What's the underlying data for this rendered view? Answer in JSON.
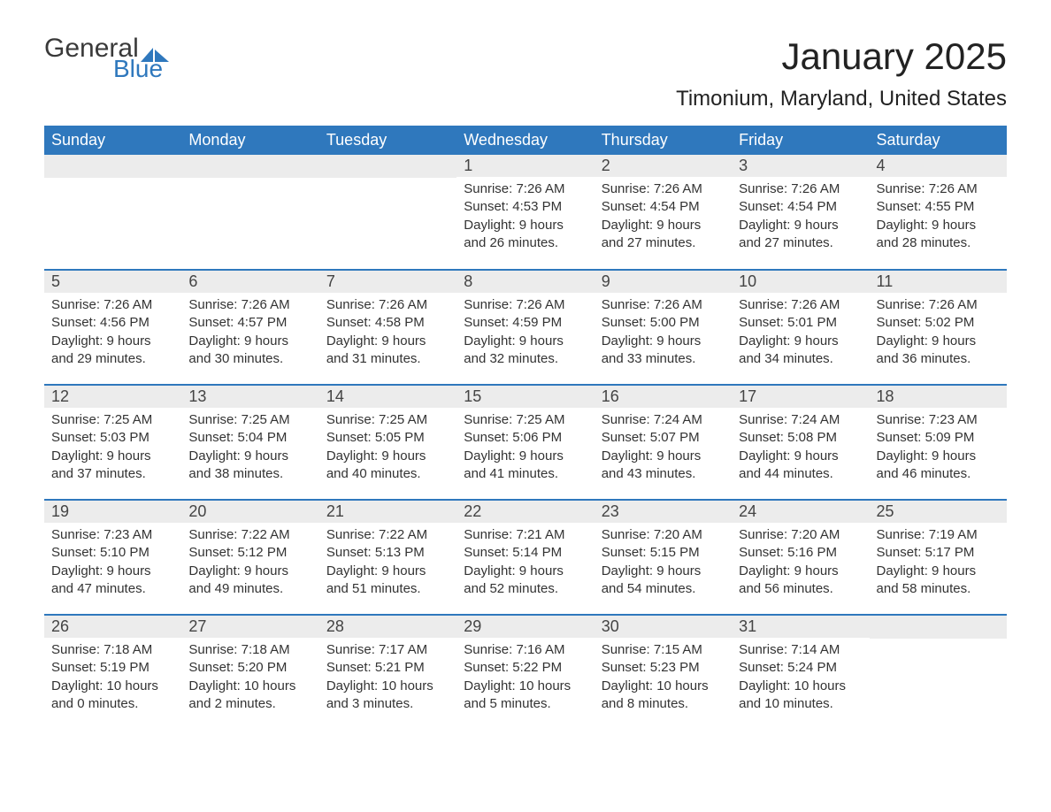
{
  "logo": {
    "general": "General",
    "blue": "Blue",
    "flag_color": "#2f78bd"
  },
  "title": "January 2025",
  "location": "Timonium, Maryland, United States",
  "colors": {
    "header_bg": "#2f78bd",
    "header_text": "#ffffff",
    "daynum_bg": "#ececec",
    "row_divider": "#2f78bd",
    "body_text": "#333333",
    "page_bg": "#ffffff"
  },
  "typography": {
    "title_fontsize": 42,
    "location_fontsize": 24,
    "header_fontsize": 18,
    "daynum_fontsize": 18,
    "body_fontsize": 15
  },
  "day_labels": [
    "Sunday",
    "Monday",
    "Tuesday",
    "Wednesday",
    "Thursday",
    "Friday",
    "Saturday"
  ],
  "weeks": [
    [
      null,
      null,
      null,
      {
        "n": "1",
        "sunrise": "Sunrise: 7:26 AM",
        "sunset": "Sunset: 4:53 PM",
        "daylight": "Daylight: 9 hours and 26 minutes."
      },
      {
        "n": "2",
        "sunrise": "Sunrise: 7:26 AM",
        "sunset": "Sunset: 4:54 PM",
        "daylight": "Daylight: 9 hours and 27 minutes."
      },
      {
        "n": "3",
        "sunrise": "Sunrise: 7:26 AM",
        "sunset": "Sunset: 4:54 PM",
        "daylight": "Daylight: 9 hours and 27 minutes."
      },
      {
        "n": "4",
        "sunrise": "Sunrise: 7:26 AM",
        "sunset": "Sunset: 4:55 PM",
        "daylight": "Daylight: 9 hours and 28 minutes."
      }
    ],
    [
      {
        "n": "5",
        "sunrise": "Sunrise: 7:26 AM",
        "sunset": "Sunset: 4:56 PM",
        "daylight": "Daylight: 9 hours and 29 minutes."
      },
      {
        "n": "6",
        "sunrise": "Sunrise: 7:26 AM",
        "sunset": "Sunset: 4:57 PM",
        "daylight": "Daylight: 9 hours and 30 minutes."
      },
      {
        "n": "7",
        "sunrise": "Sunrise: 7:26 AM",
        "sunset": "Sunset: 4:58 PM",
        "daylight": "Daylight: 9 hours and 31 minutes."
      },
      {
        "n": "8",
        "sunrise": "Sunrise: 7:26 AM",
        "sunset": "Sunset: 4:59 PM",
        "daylight": "Daylight: 9 hours and 32 minutes."
      },
      {
        "n": "9",
        "sunrise": "Sunrise: 7:26 AM",
        "sunset": "Sunset: 5:00 PM",
        "daylight": "Daylight: 9 hours and 33 minutes."
      },
      {
        "n": "10",
        "sunrise": "Sunrise: 7:26 AM",
        "sunset": "Sunset: 5:01 PM",
        "daylight": "Daylight: 9 hours and 34 minutes."
      },
      {
        "n": "11",
        "sunrise": "Sunrise: 7:26 AM",
        "sunset": "Sunset: 5:02 PM",
        "daylight": "Daylight: 9 hours and 36 minutes."
      }
    ],
    [
      {
        "n": "12",
        "sunrise": "Sunrise: 7:25 AM",
        "sunset": "Sunset: 5:03 PM",
        "daylight": "Daylight: 9 hours and 37 minutes."
      },
      {
        "n": "13",
        "sunrise": "Sunrise: 7:25 AM",
        "sunset": "Sunset: 5:04 PM",
        "daylight": "Daylight: 9 hours and 38 minutes."
      },
      {
        "n": "14",
        "sunrise": "Sunrise: 7:25 AM",
        "sunset": "Sunset: 5:05 PM",
        "daylight": "Daylight: 9 hours and 40 minutes."
      },
      {
        "n": "15",
        "sunrise": "Sunrise: 7:25 AM",
        "sunset": "Sunset: 5:06 PM",
        "daylight": "Daylight: 9 hours and 41 minutes."
      },
      {
        "n": "16",
        "sunrise": "Sunrise: 7:24 AM",
        "sunset": "Sunset: 5:07 PM",
        "daylight": "Daylight: 9 hours and 43 minutes."
      },
      {
        "n": "17",
        "sunrise": "Sunrise: 7:24 AM",
        "sunset": "Sunset: 5:08 PM",
        "daylight": "Daylight: 9 hours and 44 minutes."
      },
      {
        "n": "18",
        "sunrise": "Sunrise: 7:23 AM",
        "sunset": "Sunset: 5:09 PM",
        "daylight": "Daylight: 9 hours and 46 minutes."
      }
    ],
    [
      {
        "n": "19",
        "sunrise": "Sunrise: 7:23 AM",
        "sunset": "Sunset: 5:10 PM",
        "daylight": "Daylight: 9 hours and 47 minutes."
      },
      {
        "n": "20",
        "sunrise": "Sunrise: 7:22 AM",
        "sunset": "Sunset: 5:12 PM",
        "daylight": "Daylight: 9 hours and 49 minutes."
      },
      {
        "n": "21",
        "sunrise": "Sunrise: 7:22 AM",
        "sunset": "Sunset: 5:13 PM",
        "daylight": "Daylight: 9 hours and 51 minutes."
      },
      {
        "n": "22",
        "sunrise": "Sunrise: 7:21 AM",
        "sunset": "Sunset: 5:14 PM",
        "daylight": "Daylight: 9 hours and 52 minutes."
      },
      {
        "n": "23",
        "sunrise": "Sunrise: 7:20 AM",
        "sunset": "Sunset: 5:15 PM",
        "daylight": "Daylight: 9 hours and 54 minutes."
      },
      {
        "n": "24",
        "sunrise": "Sunrise: 7:20 AM",
        "sunset": "Sunset: 5:16 PM",
        "daylight": "Daylight: 9 hours and 56 minutes."
      },
      {
        "n": "25",
        "sunrise": "Sunrise: 7:19 AM",
        "sunset": "Sunset: 5:17 PM",
        "daylight": "Daylight: 9 hours and 58 minutes."
      }
    ],
    [
      {
        "n": "26",
        "sunrise": "Sunrise: 7:18 AM",
        "sunset": "Sunset: 5:19 PM",
        "daylight": "Daylight: 10 hours and 0 minutes."
      },
      {
        "n": "27",
        "sunrise": "Sunrise: 7:18 AM",
        "sunset": "Sunset: 5:20 PM",
        "daylight": "Daylight: 10 hours and 2 minutes."
      },
      {
        "n": "28",
        "sunrise": "Sunrise: 7:17 AM",
        "sunset": "Sunset: 5:21 PM",
        "daylight": "Daylight: 10 hours and 3 minutes."
      },
      {
        "n": "29",
        "sunrise": "Sunrise: 7:16 AM",
        "sunset": "Sunset: 5:22 PM",
        "daylight": "Daylight: 10 hours and 5 minutes."
      },
      {
        "n": "30",
        "sunrise": "Sunrise: 7:15 AM",
        "sunset": "Sunset: 5:23 PM",
        "daylight": "Daylight: 10 hours and 8 minutes."
      },
      {
        "n": "31",
        "sunrise": "Sunrise: 7:14 AM",
        "sunset": "Sunset: 5:24 PM",
        "daylight": "Daylight: 10 hours and 10 minutes."
      },
      null
    ]
  ]
}
